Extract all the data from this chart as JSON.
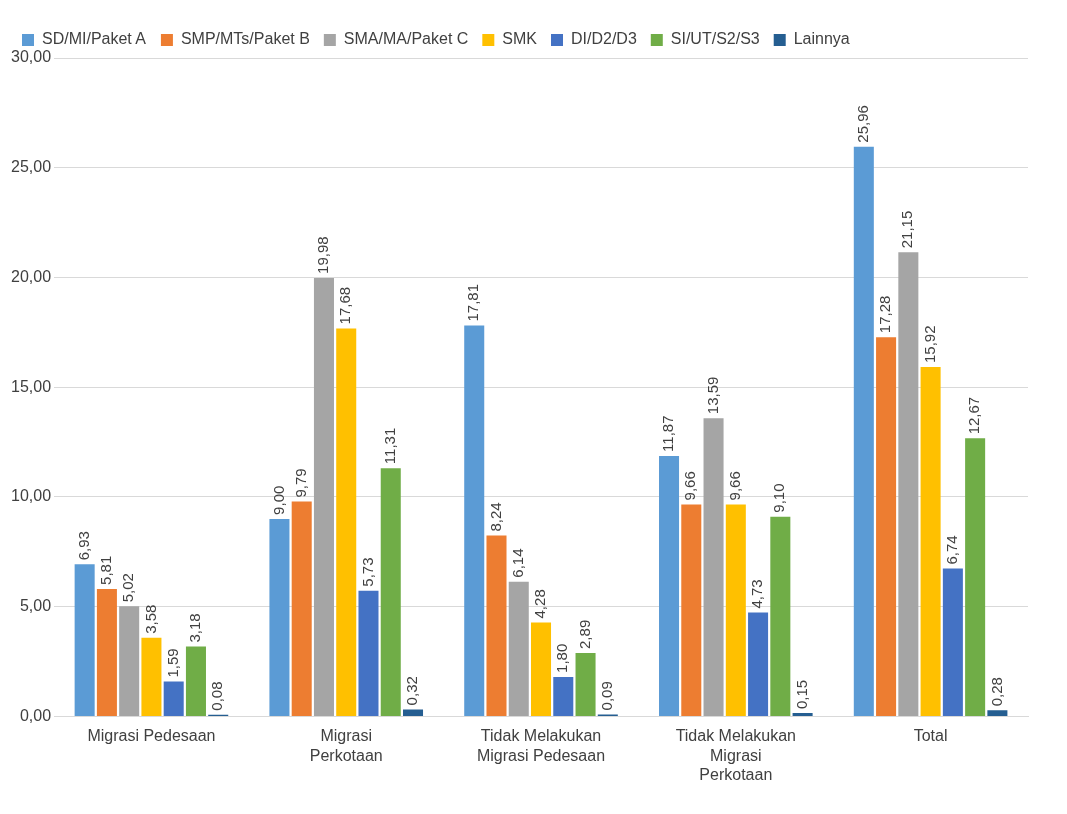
{
  "chart_data": {
    "type": "bar",
    "categories": [
      "Migrasi Pedesaan",
      "Migrasi Perkotaan",
      "Tidak Melakukan Migrasi Pedesaan",
      "Tidak Melakukan Migrasi Perkotaan",
      "Total"
    ],
    "series": [
      {
        "name": "SD/MI/Paket A",
        "color": "#5b9bd5",
        "values": [
          6.93,
          9.0,
          17.81,
          11.87,
          25.96
        ],
        "value_labels": [
          "6,93",
          "9,00",
          "17,81",
          "11,87",
          "25,96"
        ]
      },
      {
        "name": "SMP/MTs/Paket B",
        "color": "#ed7d31",
        "values": [
          5.81,
          9.79,
          8.24,
          9.66,
          17.28
        ],
        "value_labels": [
          "5,81",
          "9,79",
          "8,24",
          "9,66",
          "17,28"
        ]
      },
      {
        "name": "SMA/MA/Paket C",
        "color": "#a5a5a5",
        "values": [
          5.02,
          19.98,
          6.14,
          13.59,
          21.15
        ],
        "value_labels": [
          "5,02",
          "19,98",
          "6,14",
          "13,59",
          "21,15"
        ]
      },
      {
        "name": "SMK",
        "color": "#ffc000",
        "values": [
          3.58,
          17.68,
          4.28,
          9.66,
          15.92
        ],
        "value_labels": [
          "3,58",
          "17,68",
          "4,28",
          "9,66",
          "15,92"
        ]
      },
      {
        "name": "DI/D2/D3",
        "color": "#4472c4",
        "values": [
          1.59,
          5.73,
          1.8,
          4.73,
          6.74
        ],
        "value_labels": [
          "1,59",
          "5,73",
          "1,80",
          "4,73",
          "6,74"
        ]
      },
      {
        "name": "SI/UT/S2/S3",
        "color": "#70ad47",
        "values": [
          3.18,
          11.31,
          2.89,
          9.1,
          12.67
        ],
        "value_labels": [
          "3,18",
          "11,31",
          "2,89",
          "9,10",
          "12,67"
        ]
      },
      {
        "name": "Lainnya",
        "color": "#255e91",
        "values": [
          0.08,
          0.32,
          0.09,
          0.15,
          0.28
        ],
        "value_labels": [
          "0,08",
          "0,32",
          "0,09",
          "0,15",
          "0,28"
        ]
      }
    ],
    "ylim": [
      0,
      30
    ],
    "yticks": [
      {
        "value": 0,
        "label": "0,00"
      },
      {
        "value": 5,
        "label": "5,00"
      },
      {
        "value": 10,
        "label": "10,00"
      },
      {
        "value": 15,
        "label": "15,00"
      },
      {
        "value": 20,
        "label": "20,00"
      },
      {
        "value": 25,
        "label": "25,00"
      },
      {
        "value": 30,
        "label": "30,00"
      }
    ],
    "grid": "y",
    "legend": "top"
  }
}
